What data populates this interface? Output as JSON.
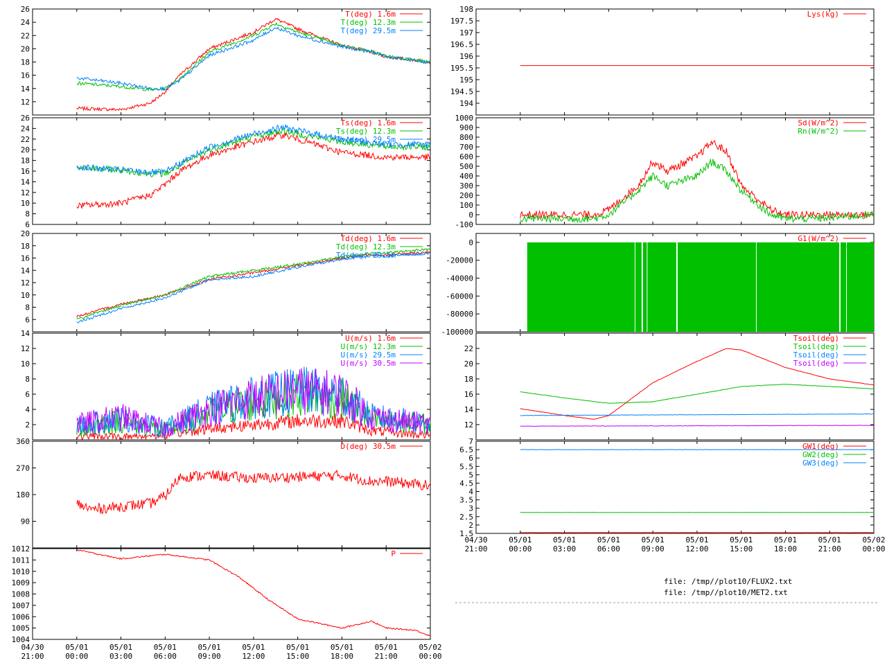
{
  "colors": {
    "red": "#ff0000",
    "green": "#00c000",
    "blue": "#0080ff",
    "magenta": "#c000ff"
  },
  "x_axis": {
    "tick_labels_left": [
      {
        "date": "04/30",
        "time": "21:00"
      },
      {
        "date": "05/01",
        "time": "00:00"
      },
      {
        "date": "05/01",
        "time": "03:00"
      },
      {
        "date": "05/01",
        "time": "06:00"
      },
      {
        "date": "05/01",
        "time": "09:00"
      },
      {
        "date": "05/01",
        "time": "12:00"
      },
      {
        "date": "05/01",
        "time": "15:00"
      },
      {
        "date": "05/01",
        "time": "18:00"
      },
      {
        "date": "05/01",
        "time": "21:00"
      },
      {
        "date": "05/02",
        "time": "00:00"
      }
    ],
    "tick_labels_right": [
      {
        "date": "04/30",
        "time": "21:00"
      },
      {
        "date": "05/01",
        "time": "00:00"
      },
      {
        "date": "05/01",
        "time": "03:00"
      },
      {
        "date": "05/01",
        "time": "06:00"
      },
      {
        "date": "05/01",
        "time": "09:00"
      },
      {
        "date": "05/01",
        "time": "12:00"
      },
      {
        "date": "05/01",
        "time": "15:00"
      },
      {
        "date": "05/01",
        "time": "18:00"
      },
      {
        "date": "05/01",
        "time": "21:00"
      },
      {
        "date": "05/02",
        "time": "00:00"
      }
    ],
    "range": [
      "04/30 21:00",
      "05/02 00:00"
    ]
  },
  "files": [
    "file: /tmp//plot10/FLUX2.txt",
    "file: /tmp//plot10/MET2.txt"
  ],
  "chart_data": [
    {
      "id": "air-temperature",
      "type": "line",
      "ylim": [
        10,
        26
      ],
      "yticks": [
        "12",
        "14",
        "16",
        "18",
        "20",
        "22",
        "24",
        "26"
      ],
      "series": [
        {
          "name": "T(deg)  1.6m",
          "color": "red",
          "x": [
            "05/01 00:00",
            "05/01 03:00",
            "05/01 05:00",
            "05/01 06:00",
            "05/01 07:00",
            "05/01 09:00",
            "05/01 12:00",
            "05/01 13:30",
            "05/01 15:00",
            "05/01 18:00",
            "05/01 20:00",
            "05/01 21:00",
            "05/02 00:00"
          ],
          "y": [
            11.0,
            10.8,
            11.8,
            13.5,
            16.0,
            20.0,
            22.5,
            24.5,
            23.0,
            20.5,
            19.5,
            18.8,
            18.0
          ]
        },
        {
          "name": "T(deg) 12.3m",
          "color": "green",
          "x": [
            "05/01 00:00",
            "05/01 03:00",
            "05/01 05:00",
            "05/01 06:00",
            "05/01 07:00",
            "05/01 09:00",
            "05/01 12:00",
            "05/01 13:30",
            "05/01 15:00",
            "05/01 18:00",
            "05/01 20:00",
            "05/01 21:00",
            "05/02 00:00"
          ],
          "y": [
            14.8,
            14.3,
            13.8,
            14.0,
            15.5,
            19.5,
            22.0,
            23.8,
            22.5,
            20.5,
            19.6,
            18.9,
            18.0
          ]
        },
        {
          "name": "T(deg) 29.5m",
          "color": "blue",
          "x": [
            "05/01 00:00",
            "05/01 03:00",
            "05/01 05:00",
            "05/01 06:00",
            "05/01 07:00",
            "05/01 09:00",
            "05/01 12:00",
            "05/01 13:30",
            "05/01 15:00",
            "05/01 18:00",
            "05/01 20:00",
            "05/01 21:00",
            "05/02 00:00"
          ],
          "y": [
            15.6,
            14.8,
            14.0,
            14.0,
            15.2,
            19.0,
            21.3,
            23.2,
            22.0,
            20.3,
            19.5,
            18.8,
            17.9
          ]
        }
      ]
    },
    {
      "id": "surface-temperature",
      "type": "line",
      "ylim": [
        6,
        26
      ],
      "yticks": [
        "6",
        "8",
        "10",
        "12",
        "14",
        "16",
        "18",
        "20",
        "22",
        "24",
        "26"
      ],
      "series": [
        {
          "name": "Ts(deg)  1.6m",
          "color": "red",
          "x": [
            "05/01 00:00",
            "05/01 03:00",
            "05/01 05:00",
            "05/01 06:00",
            "05/01 07:00",
            "05/01 09:00",
            "05/01 12:00",
            "05/01 14:00",
            "05/01 15:00",
            "05/01 18:00",
            "05/01 21:00",
            "05/02 00:00"
          ],
          "y": [
            9.5,
            10.0,
            11.5,
            13.5,
            16.0,
            19.0,
            21.5,
            22.8,
            22.0,
            19.5,
            18.6,
            18.6
          ]
        },
        {
          "name": "Ts(deg) 12.3m",
          "color": "green",
          "x": [
            "05/01 00:00",
            "05/01 03:00",
            "05/01 05:00",
            "05/01 06:00",
            "05/01 07:00",
            "05/01 09:00",
            "05/01 12:00",
            "05/01 14:00",
            "05/01 15:00",
            "05/01 18:00",
            "05/01 21:00",
            "05/02 00:00"
          ],
          "y": [
            16.6,
            16.2,
            15.5,
            15.5,
            17.0,
            20.0,
            22.5,
            23.6,
            23.0,
            21.5,
            20.6,
            20.5
          ]
        },
        {
          "name": "Ts(deg) 29.5m",
          "color": "blue",
          "x": [
            "05/01 00:00",
            "05/01 03:00",
            "05/01 05:00",
            "05/01 06:00",
            "05/01 07:00",
            "05/01 09:00",
            "05/01 12:00",
            "05/01 14:00",
            "05/01 15:00",
            "05/01 18:00",
            "05/01 21:00",
            "05/02 00:00"
          ],
          "y": [
            16.8,
            16.2,
            15.8,
            15.8,
            17.4,
            20.5,
            23.0,
            24.2,
            23.6,
            22.0,
            21.0,
            21.0
          ]
        }
      ]
    },
    {
      "id": "dewpoint-temperature",
      "type": "line",
      "ylim": [
        4,
        20
      ],
      "yticks": [
        "6",
        "8",
        "10",
        "12",
        "14",
        "16",
        "18",
        "20"
      ],
      "series": [
        {
          "name": "Td(deg)  1.6m",
          "color": "red",
          "x": [
            "05/01 00:00",
            "05/01 03:00",
            "05/01 06:00",
            "05/01 09:00",
            "05/01 12:00",
            "05/01 15:00",
            "05/01 18:00",
            "05/01 20:00",
            "05/01 21:00",
            "05/02 00:00"
          ],
          "y": [
            6.5,
            8.5,
            10.0,
            12.5,
            13.6,
            14.8,
            16.0,
            16.6,
            16.5,
            17.0
          ]
        },
        {
          "name": "Td(deg) 12.3m",
          "color": "green",
          "x": [
            "05/01 00:00",
            "05/01 03:00",
            "05/01 06:00",
            "05/01 09:00",
            "05/01 12:00",
            "05/01 15:00",
            "05/01 18:00",
            "05/01 20:00",
            "05/01 21:00",
            "05/02 00:00"
          ],
          "y": [
            6.0,
            8.3,
            10.0,
            13.0,
            14.0,
            15.0,
            16.2,
            16.8,
            16.8,
            17.5
          ]
        },
        {
          "name": "Td(deg) 29.5m",
          "color": "blue",
          "x": [
            "05/01 00:00",
            "05/01 03:00",
            "05/01 06:00",
            "05/01 09:00",
            "05/01 12:00",
            "05/01 15:00",
            "05/01 18:00",
            "05/01 20:00",
            "05/01 21:00",
            "05/02 00:00"
          ],
          "y": [
            5.5,
            7.8,
            9.5,
            12.5,
            13.0,
            14.5,
            15.8,
            16.4,
            16.3,
            16.8
          ]
        }
      ]
    },
    {
      "id": "wind-speed",
      "type": "line",
      "ylim": [
        0,
        14
      ],
      "yticks": [
        "2",
        "4",
        "6",
        "8",
        "10",
        "12",
        "14"
      ],
      "series": [
        {
          "name": "U(m/s)  1.6m",
          "color": "red",
          "x": [
            "05/01 00:00",
            "05/01 03:00",
            "05/01 06:00",
            "05/01 09:00",
            "05/01 12:00",
            "05/01 15:00",
            "05/01 18:00",
            "05/01 20:00",
            "05/02 00:00"
          ],
          "y": [
            0.5,
            0.4,
            0.6,
            1.5,
            2.0,
            2.5,
            2.5,
            1.2,
            0.6
          ]
        },
        {
          "name": "U(m/s) 12.3m",
          "color": "green",
          "x": [
            "05/01 00:00",
            "05/01 03:00",
            "05/01 06:00",
            "05/01 09:00",
            "05/01 12:00",
            "05/01 15:00",
            "05/01 18:00",
            "05/01 20:00",
            "05/02 00:00"
          ],
          "y": [
            1.5,
            2.5,
            1.2,
            3.5,
            5.0,
            6.0,
            5.5,
            2.5,
            2.0
          ]
        },
        {
          "name": "U(m/s) 29.5m",
          "color": "blue",
          "x": [
            "05/01 00:00",
            "05/01 03:00",
            "05/01 06:00",
            "05/01 09:00",
            "05/01 12:00",
            "05/01 15:00",
            "05/01 18:00",
            "05/01 20:00",
            "05/02 00:00"
          ],
          "y": [
            1.8,
            2.8,
            1.5,
            4.0,
            5.5,
            6.5,
            6.0,
            3.0,
            2.2
          ]
        },
        {
          "name": "U(m/s) 30.5m",
          "color": "magenta",
          "x": [
            "05/01 00:00",
            "05/01 03:00",
            "05/01 06:00",
            "05/01 09:00",
            "05/01 12:00",
            "05/01 15:00",
            "05/01 18:00",
            "05/01 20:00",
            "05/02 00:00"
          ],
          "y": [
            2.0,
            3.0,
            1.5,
            4.0,
            5.5,
            6.5,
            6.0,
            3.0,
            2.0
          ]
        }
      ]
    },
    {
      "id": "wind-direction",
      "type": "line",
      "ylim": [
        0,
        360
      ],
      "yticks": [
        "90",
        "180",
        "270",
        "360"
      ],
      "series": [
        {
          "name": "D(deg)  30.5m",
          "color": "red",
          "x": [
            "05/01 00:00",
            "05/01 01:00",
            "05/01 03:00",
            "05/01 05:00",
            "05/01 06:00",
            "05/01 07:00",
            "05/01 09:00",
            "05/01 12:00",
            "05/01 15:00",
            "05/01 18:00",
            "05/01 20:00",
            "05/01 21:00",
            "05/02 00:00"
          ],
          "y": [
            150,
            130,
            140,
            150,
            175,
            240,
            245,
            235,
            240,
            245,
            225,
            225,
            210
          ]
        }
      ]
    },
    {
      "id": "pressure",
      "type": "line",
      "ylim": [
        1004,
        1012
      ],
      "yticks": [
        "1004",
        "1005",
        "1006",
        "1007",
        "1008",
        "1009",
        "1010",
        "1011",
        "1012"
      ],
      "series": [
        {
          "name": "P",
          "color": "red",
          "x": [
            "05/01 00:00",
            "05/01 03:00",
            "05/01 06:00",
            "05/01 09:00",
            "05/01 11:00",
            "05/01 13:00",
            "05/01 15:00",
            "05/01 18:00",
            "05/01 20:00",
            "05/01 21:00",
            "05/01 23:00",
            "05/02 00:00"
          ],
          "y": [
            1011.9,
            1011.1,
            1011.5,
            1011.0,
            1009.5,
            1007.5,
            1005.8,
            1005.0,
            1005.6,
            1005.0,
            1004.8,
            1004.3
          ]
        }
      ]
    },
    {
      "id": "lysimeter",
      "type": "line",
      "ylim": [
        193.5,
        198
      ],
      "yticks": [
        "194",
        "194.5",
        "195",
        "195.5",
        "196",
        "196.5",
        "197",
        "197.5",
        "198"
      ],
      "series": [
        {
          "name": "Lys(kg)",
          "color": "red",
          "x": [
            "05/01 00:00",
            "05/02 00:00"
          ],
          "y": [
            195.6,
            195.6
          ]
        }
      ]
    },
    {
      "id": "radiation",
      "type": "line",
      "ylim": [
        -100,
        1000
      ],
      "yticks": [
        "-100",
        "0",
        "100",
        "200",
        "300",
        "400",
        "500",
        "600",
        "700",
        "800",
        "900",
        "1000"
      ],
      "series": [
        {
          "name": "Sd(W/m^2)",
          "color": "red",
          "x": [
            "05/01 00:00",
            "05/01 05:00",
            "05/01 06:00",
            "05/01 08:00",
            "05/01 09:00",
            "05/01 10:00",
            "05/01 12:00",
            "05/01 13:00",
            "05/01 14:00",
            "05/01 15:00",
            "05/01 17:00",
            "05/01 18:00",
            "05/01 20:00",
            "05/02 00:00"
          ],
          "y": [
            0,
            0,
            50,
            300,
            550,
            450,
            600,
            750,
            650,
            300,
            50,
            0,
            0,
            0
          ]
        },
        {
          "name": "Rn(W/m^2)",
          "color": "green",
          "x": [
            "05/01 00:00",
            "05/01 05:00",
            "05/01 06:00",
            "05/01 08:00",
            "05/01 09:00",
            "05/01 10:00",
            "05/01 12:00",
            "05/01 13:00",
            "05/01 14:00",
            "05/01 15:00",
            "05/01 17:00",
            "05/01 18:00",
            "05/01 20:00",
            "05/02 00:00"
          ],
          "y": [
            -40,
            -40,
            0,
            250,
            400,
            300,
            400,
            550,
            450,
            250,
            0,
            -40,
            -40,
            0
          ]
        }
      ]
    },
    {
      "id": "ground-heat-flux",
      "type": "area",
      "ylim": [
        -100000,
        10000
      ],
      "yticks": [
        "-100000",
        "-80000",
        "-60000",
        "-40000",
        "-20000",
        "0"
      ],
      "series": [
        {
          "name": "G1(W/m^2)",
          "color": "red",
          "x": [],
          "y": []
        },
        {
          "name": "G2(W/m^2)",
          "color": "green",
          "x": [
            "05/01 00:00",
            "05/02 00:00"
          ],
          "y": [
            -100000,
            -100000
          ]
        }
      ]
    },
    {
      "id": "soil-temperature",
      "type": "line",
      "ylim": [
        10,
        24
      ],
      "yticks": [
        "12",
        "14",
        "16",
        "18",
        "20",
        "22"
      ],
      "series": [
        {
          "name": "Tsoil(deg)",
          "color": "red",
          "x": [
            "05/01 00:00",
            "05/01 03:00",
            "05/01 05:00",
            "05/01 06:00",
            "05/01 09:00",
            "05/01 12:00",
            "05/01 14:00",
            "05/01 15:00",
            "05/01 18:00",
            "05/01 21:00",
            "05/02 00:00"
          ],
          "y": [
            14.1,
            13.2,
            12.7,
            13.2,
            17.5,
            20.3,
            22.0,
            21.8,
            19.5,
            18.0,
            17.2
          ]
        },
        {
          "name": "Tsoil(deg)",
          "color": "green",
          "x": [
            "05/01 00:00",
            "05/01 03:00",
            "05/01 06:00",
            "05/01 09:00",
            "05/01 12:00",
            "05/01 15:00",
            "05/01 18:00",
            "05/01 21:00",
            "05/02 00:00"
          ],
          "y": [
            16.3,
            15.5,
            14.8,
            15.0,
            16.0,
            17.0,
            17.3,
            17.0,
            16.7
          ]
        },
        {
          "name": "Tsoil(deg)",
          "color": "blue",
          "x": [
            "05/01 00:00",
            "05/02 00:00"
          ],
          "y": [
            13.2,
            13.4
          ]
        },
        {
          "name": "Tsoil(deg)",
          "color": "magenta",
          "x": [
            "05/01 00:00",
            "05/02 00:00"
          ],
          "y": [
            11.8,
            11.9
          ]
        }
      ]
    },
    {
      "id": "groundwater",
      "type": "line",
      "ylim": [
        1.5,
        7
      ],
      "yticks": [
        "1.5",
        "2",
        "2.5",
        "3",
        "3.5",
        "4",
        "4.5",
        "5",
        "5.5",
        "6",
        "6.5",
        "7"
      ],
      "series": [
        {
          "name": "GW1(deg)",
          "color": "red",
          "x": [
            "05/01 00:00",
            "05/02 00:00"
          ],
          "y": [
            1.55,
            1.55
          ]
        },
        {
          "name": "GW2(deg)",
          "color": "green",
          "x": [
            "05/01 00:00",
            "05/02 00:00"
          ],
          "y": [
            2.75,
            2.75
          ]
        },
        {
          "name": "GW3(deg)",
          "color": "blue",
          "x": [
            "05/01 00:00",
            "05/02 00:00"
          ],
          "y": [
            6.5,
            6.5
          ]
        }
      ]
    }
  ]
}
